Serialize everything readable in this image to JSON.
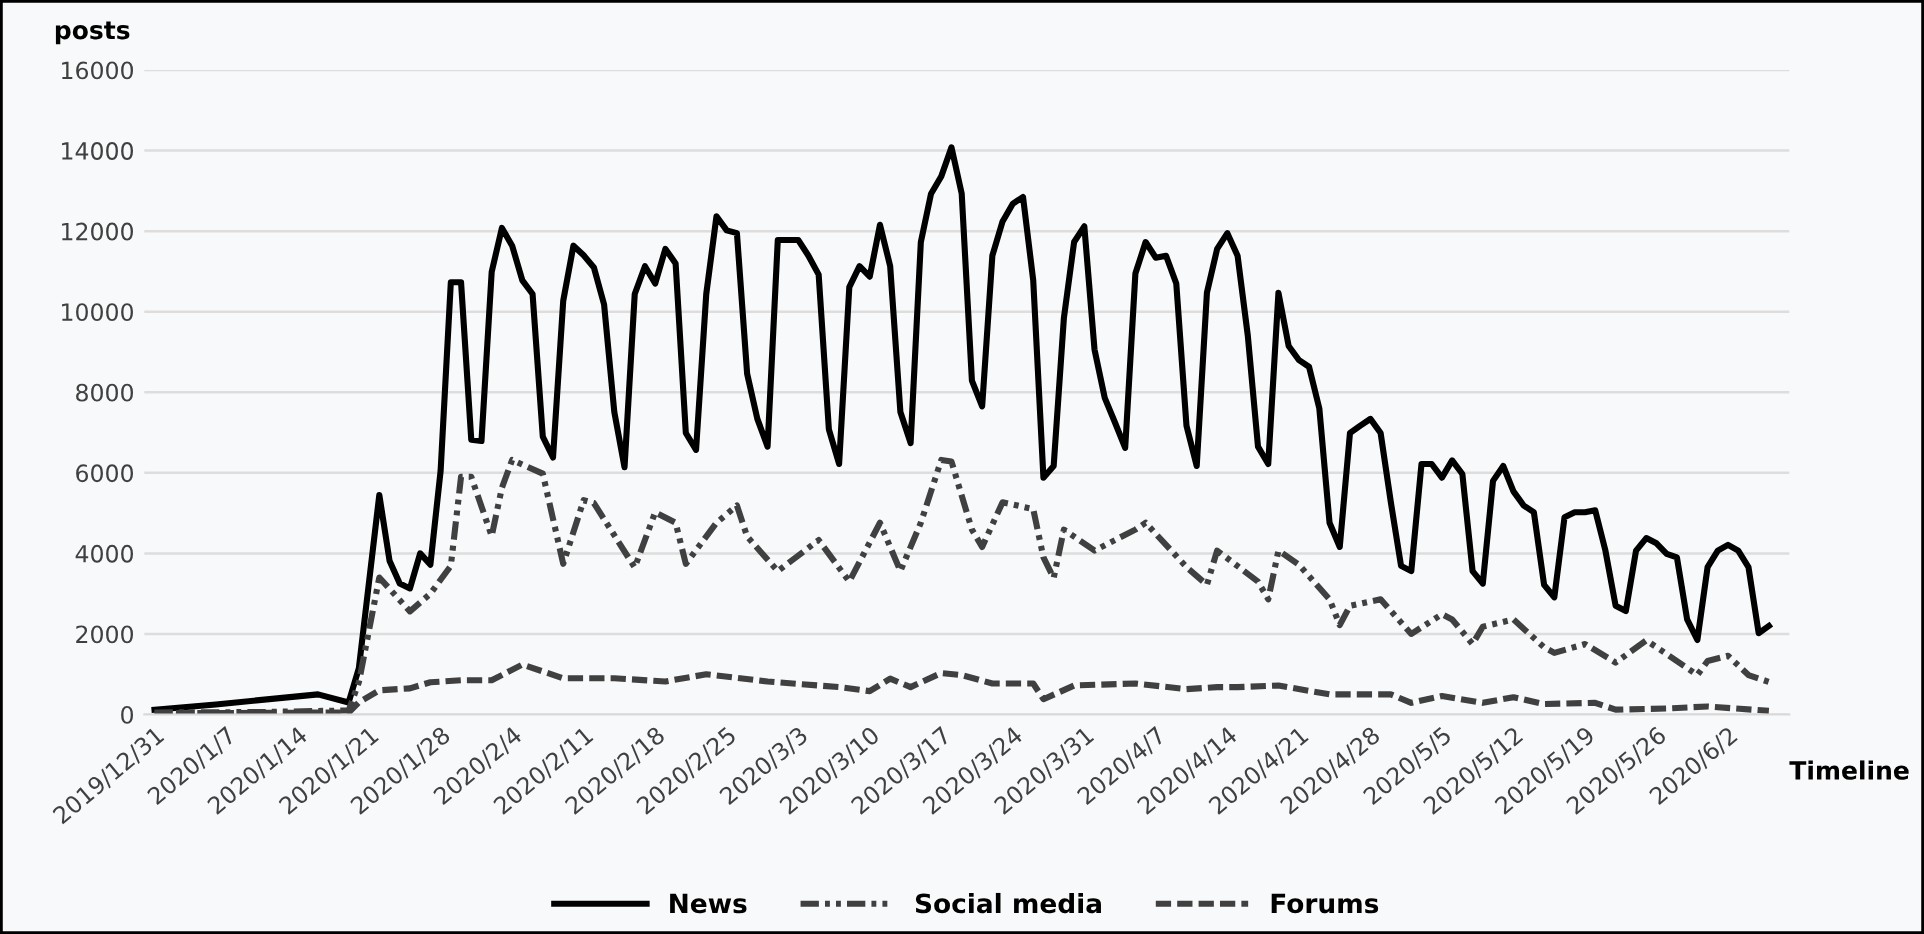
{
  "chart_data": {
    "type": "line",
    "ylabel": "posts",
    "xlabel": "Timeline",
    "x": [
      "2019-12-31",
      "2020-01-06",
      "2020-01-16",
      "2020-01-19",
      "2020-01-20",
      "2020-01-22",
      "2020-01-23",
      "2020-01-24",
      "2020-01-25",
      "2020-01-26",
      "2020-01-27",
      "2020-01-28",
      "2020-01-29",
      "2020-01-30",
      "2020-01-31",
      "2020-02-01",
      "2020-02-02",
      "2020-02-03",
      "2020-02-04",
      "2020-02-05",
      "2020-02-06",
      "2020-02-07",
      "2020-02-08",
      "2020-02-09",
      "2020-02-10",
      "2020-02-11",
      "2020-02-12",
      "2020-02-13",
      "2020-02-14",
      "2020-02-15",
      "2020-02-16",
      "2020-02-17",
      "2020-02-18",
      "2020-02-19",
      "2020-02-20",
      "2020-02-21",
      "2020-02-22",
      "2020-02-23",
      "2020-02-24",
      "2020-02-25",
      "2020-02-26",
      "2020-02-27",
      "2020-02-28",
      "2020-02-29",
      "2020-03-01",
      "2020-03-02",
      "2020-03-03",
      "2020-03-04",
      "2020-03-05",
      "2020-03-06",
      "2020-03-07",
      "2020-03-08",
      "2020-03-09",
      "2020-03-10",
      "2020-03-11",
      "2020-03-12",
      "2020-03-13",
      "2020-03-14",
      "2020-03-15",
      "2020-03-16",
      "2020-03-17",
      "2020-03-18",
      "2020-03-19",
      "2020-03-20",
      "2020-03-21",
      "2020-03-22",
      "2020-03-23",
      "2020-03-24",
      "2020-03-25",
      "2020-03-26",
      "2020-03-27",
      "2020-03-28",
      "2020-03-29",
      "2020-03-30",
      "2020-03-31",
      "2020-04-01",
      "2020-04-02",
      "2020-04-03",
      "2020-04-04",
      "2020-04-05",
      "2020-04-06",
      "2020-04-07",
      "2020-04-08",
      "2020-04-09",
      "2020-04-10",
      "2020-04-11",
      "2020-04-12",
      "2020-04-13",
      "2020-04-14",
      "2020-04-15",
      "2020-04-16",
      "2020-04-17",
      "2020-04-18",
      "2020-04-19",
      "2020-04-20",
      "2020-04-21",
      "2020-04-22",
      "2020-04-23",
      "2020-04-24",
      "2020-04-25",
      "2020-04-26",
      "2020-04-27",
      "2020-04-28",
      "2020-04-29",
      "2020-04-30",
      "2020-05-01",
      "2020-05-02",
      "2020-05-03",
      "2020-05-04",
      "2020-05-05",
      "2020-05-06",
      "2020-05-07",
      "2020-05-08",
      "2020-05-09",
      "2020-05-10",
      "2020-05-11",
      "2020-05-12",
      "2020-05-13",
      "2020-05-14",
      "2020-05-15",
      "2020-05-16",
      "2020-05-17",
      "2020-05-18",
      "2020-05-19",
      "2020-05-20",
      "2020-05-21",
      "2020-05-22",
      "2020-05-23",
      "2020-05-24",
      "2020-05-25",
      "2020-05-26",
      "2020-05-27",
      "2020-05-28",
      "2020-05-29",
      "2020-05-30",
      "2020-05-31",
      "2020-06-01",
      "2020-06-02",
      "2020-06-03",
      "2020-06-04",
      "2020-06-05",
      "2020-06-06"
    ],
    "series": [
      {
        "name": "News",
        "color": "#000000",
        "line_style": "solid",
        "values": [
          120,
          250,
          500,
          300,
          1150,
          5450,
          3820,
          3250,
          3130,
          4000,
          3720,
          6050,
          10730,
          10730,
          6820,
          6790,
          10990,
          12080,
          11640,
          10780,
          10440,
          6900,
          6380,
          10270,
          11640,
          11400,
          11100,
          10180,
          7510,
          6140,
          10440,
          11130,
          10700,
          11560,
          11200,
          6990,
          6570,
          10440,
          12370,
          12020,
          11950,
          8460,
          7340,
          6650,
          11780,
          11780,
          11780,
          11390,
          10920,
          7080,
          6220,
          10610,
          11130,
          10870,
          12160,
          11130,
          7510,
          6740,
          11730,
          12930,
          13360,
          14080,
          12930,
          8290,
          7650,
          11390,
          12240,
          12680,
          12850,
          10780,
          5880,
          6170,
          9840,
          11730,
          12120,
          9060,
          7860,
          7250,
          6620,
          10950,
          11730,
          11340,
          11390,
          10700,
          7170,
          6170,
          10470,
          11560,
          11950,
          11390,
          9410,
          6650,
          6220,
          10470,
          9150,
          8800,
          8630,
          7600,
          4760,
          4160,
          6990,
          7170,
          7340,
          6990,
          5270,
          3690,
          3560,
          6220,
          6220,
          5880,
          6310,
          5970,
          3560,
          3250,
          5800,
          6170,
          5540,
          5190,
          5020,
          3220,
          2910,
          4900,
          5020,
          5020,
          5070,
          4070,
          2700,
          2570,
          4070,
          4380,
          4250,
          3990,
          3900,
          2360,
          1850,
          3660,
          4070,
          4210,
          4070,
          3660,
          2020,
          2200
        ]
      },
      {
        "name": "Social media",
        "color": "#404040",
        "line_style": "dashdot",
        "x": [
          "2019-12-31",
          "2020-01-10",
          "2020-01-19",
          "2020-01-20",
          "2020-01-22",
          "2020-01-25",
          "2020-01-27",
          "2020-01-29",
          "2020-01-30",
          "2020-01-31",
          "2020-02-02",
          "2020-02-03",
          "2020-02-04",
          "2020-02-07",
          "2020-02-09",
          "2020-02-11",
          "2020-02-12",
          "2020-02-16",
          "2020-02-18",
          "2020-02-20",
          "2020-02-21",
          "2020-02-24",
          "2020-02-26",
          "2020-02-27",
          "2020-03-01",
          "2020-03-05",
          "2020-03-08",
          "2020-03-11",
          "2020-03-13",
          "2020-03-15",
          "2020-03-17",
          "2020-03-18",
          "2020-03-20",
          "2020-03-21",
          "2020-03-23",
          "2020-03-26",
          "2020-03-27",
          "2020-03-28",
          "2020-03-29",
          "2020-04-01",
          "2020-04-05",
          "2020-04-06",
          "2020-04-10",
          "2020-04-12",
          "2020-04-13",
          "2020-04-17",
          "2020-04-18",
          "2020-04-19",
          "2020-04-21",
          "2020-04-24",
          "2020-04-25",
          "2020-04-26",
          "2020-04-29",
          "2020-05-02",
          "2020-05-05",
          "2020-05-06",
          "2020-05-08",
          "2020-05-09",
          "2020-05-12",
          "2020-05-15",
          "2020-05-16",
          "2020-05-19",
          "2020-05-22",
          "2020-05-25",
          "2020-05-27",
          "2020-05-30",
          "2020-05-31",
          "2020-06-02",
          "2020-06-04",
          "2020-06-06"
        ],
        "values": [
          50,
          60,
          100,
          800,
          3400,
          2560,
          3000,
          3690,
          5900,
          5900,
          4430,
          5630,
          6320,
          5980,
          3740,
          5320,
          5250,
          3650,
          5020,
          4760,
          3740,
          4760,
          5190,
          4420,
          3560,
          4330,
          3300,
          4760,
          3560,
          4760,
          6320,
          6280,
          4590,
          4160,
          5270,
          5100,
          3900,
          3390,
          4590,
          4070,
          4590,
          4760,
          3660,
          3220,
          4070,
          3300,
          2860,
          4070,
          3720,
          2860,
          2220,
          2700,
          2860,
          2000,
          2490,
          2360,
          1750,
          2180,
          2360,
          1670,
          1530,
          1750,
          1290,
          1840,
          1500,
          980,
          1330,
          1460,
          980,
          810
        ]
      },
      {
        "name": "Forums",
        "color": "#404040",
        "line_style": "dashed",
        "x": [
          "2019-12-31",
          "2020-01-19",
          "2020-01-20",
          "2020-01-22",
          "2020-01-25",
          "2020-01-27",
          "2020-01-30",
          "2020-02-02",
          "2020-02-05",
          "2020-02-09",
          "2020-02-14",
          "2020-02-19",
          "2020-02-23",
          "2020-02-29",
          "2020-03-07",
          "2020-03-10",
          "2020-03-12",
          "2020-03-14",
          "2020-03-17",
          "2020-03-19",
          "2020-03-22",
          "2020-03-26",
          "2020-03-27",
          "2020-03-30",
          "2020-04-05",
          "2020-04-10",
          "2020-04-13",
          "2020-04-15",
          "2020-04-19",
          "2020-04-24",
          "2020-04-30",
          "2020-05-02",
          "2020-05-05",
          "2020-05-09",
          "2020-05-12",
          "2020-05-15",
          "2020-05-20",
          "2020-05-22",
          "2020-05-27",
          "2020-05-31",
          "2020-06-06"
        ],
        "values": [
          30,
          50,
          300,
          600,
          650,
          800,
          850,
          850,
          1240,
          900,
          900,
          820,
          1000,
          820,
          680,
          580,
          890,
          680,
          1030,
          980,
          770,
          770,
          380,
          720,
          770,
          630,
          680,
          680,
          720,
          500,
          500,
          290,
          460,
          290,
          430,
          260,
          290,
          120,
          150,
          200,
          90
        ]
      }
    ],
    "xlim": [
      "2019-12-30",
      "2020-06-08"
    ],
    "xticks": [
      {
        "value": "2019-12-31",
        "label": "2019/12/31"
      },
      {
        "value": "2020-01-07",
        "label": "2020/1/7"
      },
      {
        "value": "2020-01-14",
        "label": "2020/1/14"
      },
      {
        "value": "2020-01-21",
        "label": "2020/1/21"
      },
      {
        "value": "2020-01-28",
        "label": "2020/1/28"
      },
      {
        "value": "2020-02-04",
        "label": "2020/2/4"
      },
      {
        "value": "2020-02-11",
        "label": "2020/2/11"
      },
      {
        "value": "2020-02-18",
        "label": "2020/2/18"
      },
      {
        "value": "2020-02-25",
        "label": "2020/2/25"
      },
      {
        "value": "2020-03-03",
        "label": "2020/3/3"
      },
      {
        "value": "2020-03-10",
        "label": "2020/3/10"
      },
      {
        "value": "2020-03-17",
        "label": "2020/3/17"
      },
      {
        "value": "2020-03-24",
        "label": "2020/3/24"
      },
      {
        "value": "2020-03-31",
        "label": "2020/3/31"
      },
      {
        "value": "2020-04-07",
        "label": "2020/4/7"
      },
      {
        "value": "2020-04-14",
        "label": "2020/4/14"
      },
      {
        "value": "2020-04-21",
        "label": "2020/4/21"
      },
      {
        "value": "2020-04-28",
        "label": "2020/4/28"
      },
      {
        "value": "2020-05-05",
        "label": "2020/5/5"
      },
      {
        "value": "2020-05-12",
        "label": "2020/5/12"
      },
      {
        "value": "2020-05-19",
        "label": "2020/5/19"
      },
      {
        "value": "2020-05-26",
        "label": "2020/5/26"
      },
      {
        "value": "2020-06-02",
        "label": "2020/6/2"
      }
    ],
    "ylim": [
      0,
      16000
    ],
    "yticks": [
      0,
      2000,
      4000,
      6000,
      8000,
      10000,
      12000,
      14000,
      16000
    ],
    "grid": "y",
    "legend": "bottom"
  }
}
